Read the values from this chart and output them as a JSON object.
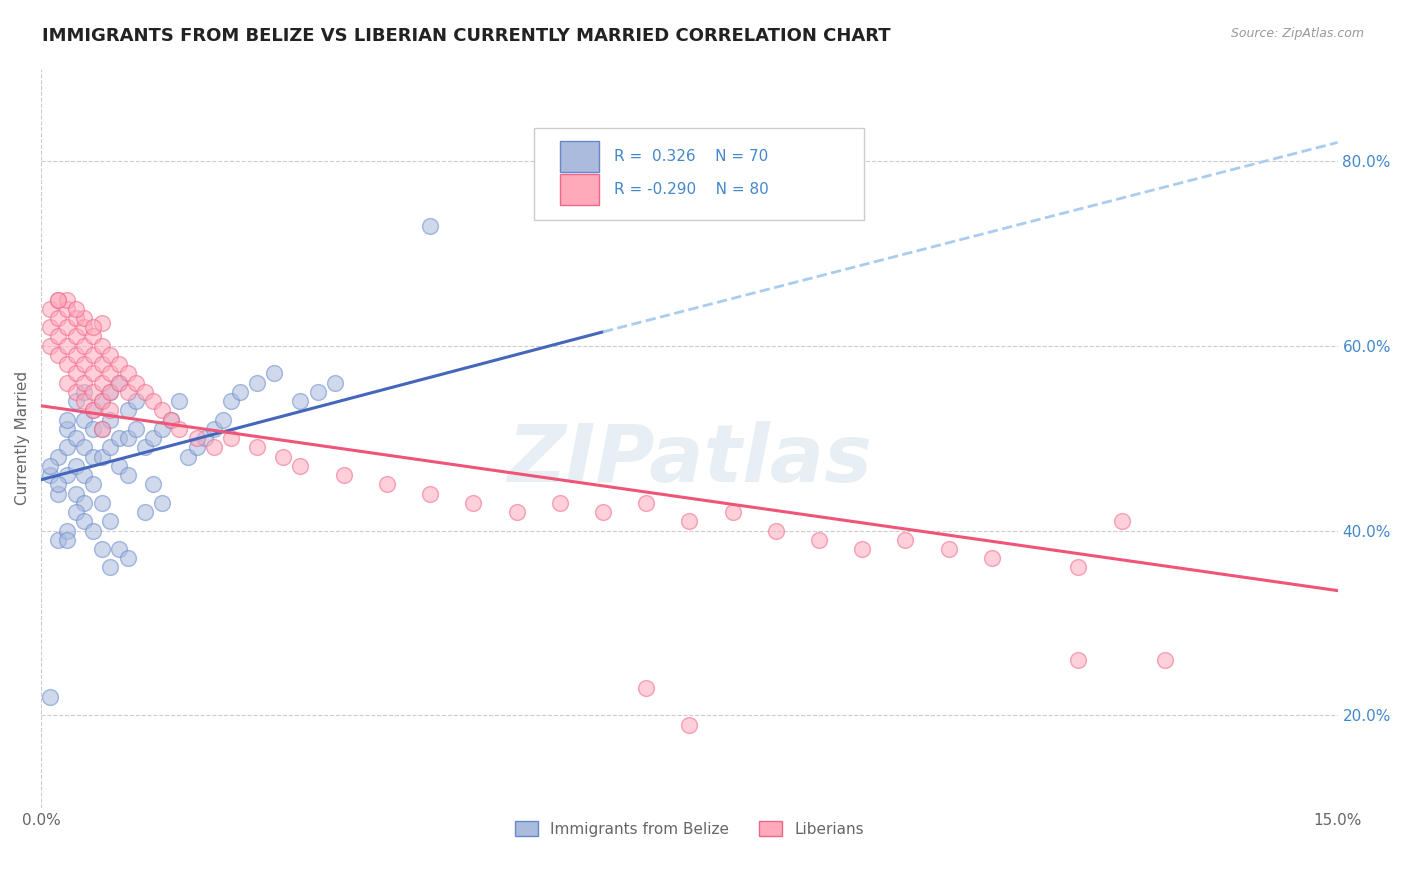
{
  "title": "IMMIGRANTS FROM BELIZE VS LIBERIAN CURRENTLY MARRIED CORRELATION CHART",
  "source_text": "Source: ZipAtlas.com",
  "ylabel": "Currently Married",
  "xlim": [
    0.0,
    0.15
  ],
  "ylim": [
    0.1,
    0.9
  ],
  "yticks": [
    0.2,
    0.4,
    0.6,
    0.8
  ],
  "ytick_labels": [
    "20.0%",
    "40.0%",
    "60.0%",
    "80.0%"
  ],
  "xtick_labels": [
    "0.0%",
    "15.0%"
  ],
  "xticks": [
    0.0,
    0.15
  ],
  "color_blue": "#AABBDD",
  "color_pink": "#FFAABB",
  "color_blue_edge": "#6688CC",
  "color_pink_edge": "#EE6688",
  "color_blue_line": "#4466BB",
  "color_pink_line": "#EE5577",
  "color_blue_dash": "#AACCEE",
  "watermark": "ZIPatlas",
  "background_color": "#FFFFFF",
  "grid_color": "#CCCCCC",
  "title_color": "#222222",
  "axis_label_color": "#666666",
  "right_tick_color": "#4488CC",
  "legend_text_color": "#4488CC",
  "trend1_x0": 0.0,
  "trend1_y0": 0.455,
  "trend1_x1": 0.065,
  "trend1_y1": 0.615,
  "trend1_dash_x0": 0.065,
  "trend1_dash_y0": 0.615,
  "trend1_dash_x1": 0.15,
  "trend1_dash_y1": 0.82,
  "trend2_x0": 0.0,
  "trend2_y0": 0.535,
  "trend2_x1": 0.15,
  "trend2_y1": 0.335,
  "series1": [
    [
      0.001,
      0.46
    ],
    [
      0.002,
      0.48
    ],
    [
      0.002,
      0.44
    ],
    [
      0.003,
      0.51
    ],
    [
      0.003,
      0.49
    ],
    [
      0.003,
      0.52
    ],
    [
      0.003,
      0.46
    ],
    [
      0.004,
      0.54
    ],
    [
      0.004,
      0.5
    ],
    [
      0.004,
      0.47
    ],
    [
      0.004,
      0.44
    ],
    [
      0.005,
      0.55
    ],
    [
      0.005,
      0.52
    ],
    [
      0.005,
      0.49
    ],
    [
      0.005,
      0.46
    ],
    [
      0.005,
      0.43
    ],
    [
      0.006,
      0.53
    ],
    [
      0.006,
      0.51
    ],
    [
      0.006,
      0.48
    ],
    [
      0.006,
      0.45
    ],
    [
      0.007,
      0.54
    ],
    [
      0.007,
      0.51
    ],
    [
      0.007,
      0.48
    ],
    [
      0.007,
      0.43
    ],
    [
      0.008,
      0.55
    ],
    [
      0.008,
      0.52
    ],
    [
      0.008,
      0.49
    ],
    [
      0.008,
      0.41
    ],
    [
      0.009,
      0.56
    ],
    [
      0.009,
      0.5
    ],
    [
      0.009,
      0.47
    ],
    [
      0.009,
      0.38
    ],
    [
      0.01,
      0.53
    ],
    [
      0.01,
      0.5
    ],
    [
      0.01,
      0.46
    ],
    [
      0.01,
      0.37
    ],
    [
      0.011,
      0.54
    ],
    [
      0.011,
      0.51
    ],
    [
      0.012,
      0.49
    ],
    [
      0.012,
      0.42
    ],
    [
      0.013,
      0.5
    ],
    [
      0.013,
      0.45
    ],
    [
      0.014,
      0.51
    ],
    [
      0.014,
      0.43
    ],
    [
      0.015,
      0.52
    ],
    [
      0.016,
      0.54
    ],
    [
      0.017,
      0.48
    ],
    [
      0.018,
      0.49
    ],
    [
      0.019,
      0.5
    ],
    [
      0.02,
      0.51
    ],
    [
      0.021,
      0.52
    ],
    [
      0.022,
      0.54
    ],
    [
      0.023,
      0.55
    ],
    [
      0.025,
      0.56
    ],
    [
      0.027,
      0.57
    ],
    [
      0.03,
      0.54
    ],
    [
      0.032,
      0.55
    ],
    [
      0.034,
      0.56
    ],
    [
      0.001,
      0.22
    ],
    [
      0.002,
      0.39
    ],
    [
      0.003,
      0.4
    ],
    [
      0.003,
      0.39
    ],
    [
      0.004,
      0.42
    ],
    [
      0.005,
      0.41
    ],
    [
      0.006,
      0.4
    ],
    [
      0.007,
      0.38
    ],
    [
      0.008,
      0.36
    ],
    [
      0.045,
      0.73
    ],
    [
      0.001,
      0.47
    ],
    [
      0.002,
      0.45
    ]
  ],
  "series2": [
    [
      0.001,
      0.64
    ],
    [
      0.001,
      0.62
    ],
    [
      0.001,
      0.6
    ],
    [
      0.002,
      0.65
    ],
    [
      0.002,
      0.63
    ],
    [
      0.002,
      0.61
    ],
    [
      0.002,
      0.59
    ],
    [
      0.003,
      0.64
    ],
    [
      0.003,
      0.62
    ],
    [
      0.003,
      0.6
    ],
    [
      0.003,
      0.58
    ],
    [
      0.003,
      0.56
    ],
    [
      0.004,
      0.63
    ],
    [
      0.004,
      0.61
    ],
    [
      0.004,
      0.59
    ],
    [
      0.004,
      0.57
    ],
    [
      0.004,
      0.55
    ],
    [
      0.005,
      0.62
    ],
    [
      0.005,
      0.6
    ],
    [
      0.005,
      0.58
    ],
    [
      0.005,
      0.56
    ],
    [
      0.005,
      0.54
    ],
    [
      0.006,
      0.61
    ],
    [
      0.006,
      0.59
    ],
    [
      0.006,
      0.57
    ],
    [
      0.006,
      0.55
    ],
    [
      0.006,
      0.53
    ],
    [
      0.007,
      0.6
    ],
    [
      0.007,
      0.58
    ],
    [
      0.007,
      0.56
    ],
    [
      0.007,
      0.54
    ],
    [
      0.007,
      0.51
    ],
    [
      0.008,
      0.59
    ],
    [
      0.008,
      0.57
    ],
    [
      0.008,
      0.55
    ],
    [
      0.008,
      0.53
    ],
    [
      0.009,
      0.58
    ],
    [
      0.009,
      0.56
    ],
    [
      0.01,
      0.57
    ],
    [
      0.01,
      0.55
    ],
    [
      0.011,
      0.56
    ],
    [
      0.012,
      0.55
    ],
    [
      0.013,
      0.54
    ],
    [
      0.014,
      0.53
    ],
    [
      0.015,
      0.52
    ],
    [
      0.016,
      0.51
    ],
    [
      0.018,
      0.5
    ],
    [
      0.02,
      0.49
    ],
    [
      0.022,
      0.5
    ],
    [
      0.025,
      0.49
    ],
    [
      0.028,
      0.48
    ],
    [
      0.03,
      0.47
    ],
    [
      0.035,
      0.46
    ],
    [
      0.04,
      0.45
    ],
    [
      0.045,
      0.44
    ],
    [
      0.05,
      0.43
    ],
    [
      0.055,
      0.42
    ],
    [
      0.06,
      0.43
    ],
    [
      0.065,
      0.42
    ],
    [
      0.07,
      0.43
    ],
    [
      0.075,
      0.41
    ],
    [
      0.08,
      0.42
    ],
    [
      0.085,
      0.4
    ],
    [
      0.09,
      0.39
    ],
    [
      0.095,
      0.38
    ],
    [
      0.1,
      0.39
    ],
    [
      0.105,
      0.38
    ],
    [
      0.11,
      0.37
    ],
    [
      0.12,
      0.36
    ],
    [
      0.125,
      0.41
    ],
    [
      0.07,
      0.23
    ],
    [
      0.075,
      0.19
    ],
    [
      0.12,
      0.26
    ],
    [
      0.13,
      0.26
    ],
    [
      0.005,
      0.63
    ],
    [
      0.007,
      0.625
    ],
    [
      0.003,
      0.65
    ],
    [
      0.004,
      0.64
    ],
    [
      0.002,
      0.65
    ],
    [
      0.006,
      0.62
    ]
  ]
}
